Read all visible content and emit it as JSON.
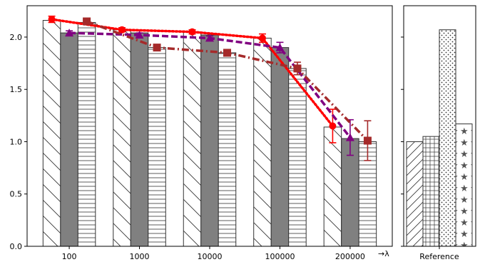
{
  "chart_data": [
    {
      "type": "bar",
      "categories": [
        "100",
        "1000",
        "10000",
        "100000",
        "200000"
      ],
      "xlabel": "→λ",
      "ylim": [
        0.0,
        2.3
      ],
      "yticks": [
        "0.0",
        "0.5",
        "1.0",
        "1.5",
        "2.0"
      ],
      "grid": false,
      "series": [
        {
          "values": [
            2.16,
            2.07,
            2.05,
            1.99,
            1.14
          ],
          "pattern": "backslash-hatch",
          "color": "#ffffff"
        },
        {
          "values": [
            2.04,
            2.04,
            2.02,
            1.9,
            1.03
          ],
          "pattern": "solid",
          "color": "#808080"
        },
        {
          "values": [
            2.14,
            1.9,
            1.85,
            1.7,
            1.0
          ],
          "pattern": "horizontal-hatch",
          "color": "#ffffff"
        }
      ],
      "lines": [
        {
          "values": [
            2.17,
            2.07,
            2.05,
            1.99,
            1.15
          ],
          "errors": [
            0.03,
            0.02,
            0.02,
            0.04,
            0.16
          ],
          "color": "#ff0000",
          "style": "dotted",
          "marker": "circle",
          "x_offset": -1
        },
        {
          "values": [
            2.04,
            2.02,
            1.99,
            1.9,
            1.04
          ],
          "errors": [
            0.02,
            0.02,
            0.02,
            0.05,
            0.17
          ],
          "color": "#800080",
          "style": "dashed",
          "marker": "triangle",
          "x_offset": 0
        },
        {
          "values": [
            2.15,
            1.9,
            1.85,
            1.7,
            1.01
          ],
          "errors": [
            0.02,
            0.02,
            0.03,
            0.06,
            0.19
          ],
          "color": "#a52a2a",
          "style": "dashdot",
          "marker": "square",
          "x_offset": 1
        }
      ]
    },
    {
      "type": "bar",
      "categories": [
        "Reference"
      ],
      "ylim": [
        0.0,
        2.3
      ],
      "series": [
        {
          "values": [
            1.0
          ],
          "pattern": "slash-hatch",
          "color": "#ffffff"
        },
        {
          "values": [
            1.05
          ],
          "pattern": "grid-hatch",
          "color": "#ffffff"
        },
        {
          "values": [
            2.07
          ],
          "pattern": "dots",
          "color": "#ffffff"
        },
        {
          "values": [
            1.17
          ],
          "pattern": "stars",
          "color": "#ffffff"
        }
      ]
    }
  ]
}
